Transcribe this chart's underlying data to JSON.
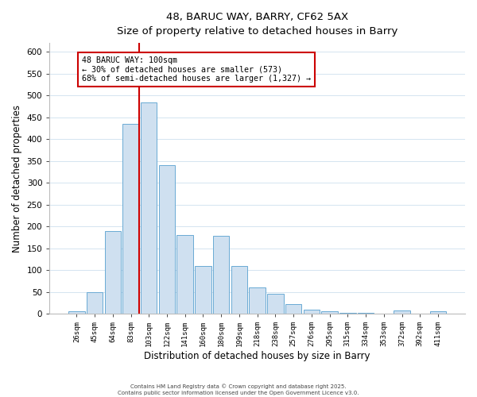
{
  "title_line1": "48, BARUC WAY, BARRY, CF62 5AX",
  "title_line2": "Size of property relative to detached houses in Barry",
  "xlabel": "Distribution of detached houses by size in Barry",
  "ylabel": "Number of detached properties",
  "bar_labels": [
    "26sqm",
    "45sqm",
    "64sqm",
    "83sqm",
    "103sqm",
    "122sqm",
    "141sqm",
    "160sqm",
    "180sqm",
    "199sqm",
    "218sqm",
    "238sqm",
    "257sqm",
    "276sqm",
    "295sqm",
    "315sqm",
    "334sqm",
    "353sqm",
    "372sqm",
    "392sqm",
    "411sqm"
  ],
  "bar_heights": [
    5,
    50,
    190,
    435,
    483,
    340,
    180,
    110,
    178,
    110,
    60,
    45,
    22,
    10,
    5,
    3,
    2,
    1,
    8,
    1,
    5
  ],
  "bar_color": "#cfe0f0",
  "bar_edge_color": "#6aaad4",
  "vline_x_index": 3,
  "vline_color": "#cc0000",
  "annotation_title": "48 BARUC WAY: 100sqm",
  "annotation_line2": "← 30% of detached houses are smaller (573)",
  "annotation_line3": "68% of semi-detached houses are larger (1,327) →",
  "annotation_box_color": "#ffffff",
  "annotation_box_edge": "#cc0000",
  "ylim": [
    0,
    620
  ],
  "yticks": [
    0,
    50,
    100,
    150,
    200,
    250,
    300,
    350,
    400,
    450,
    500,
    550,
    600
  ],
  "grid_color": "#d4e4f0",
  "footer_line1": "Contains HM Land Registry data © Crown copyright and database right 2025.",
  "footer_line2": "Contains public sector information licensed under the Open Government Licence v3.0.",
  "background_color": "#ffffff",
  "fig_width": 6.0,
  "fig_height": 5.0,
  "fig_dpi": 100
}
